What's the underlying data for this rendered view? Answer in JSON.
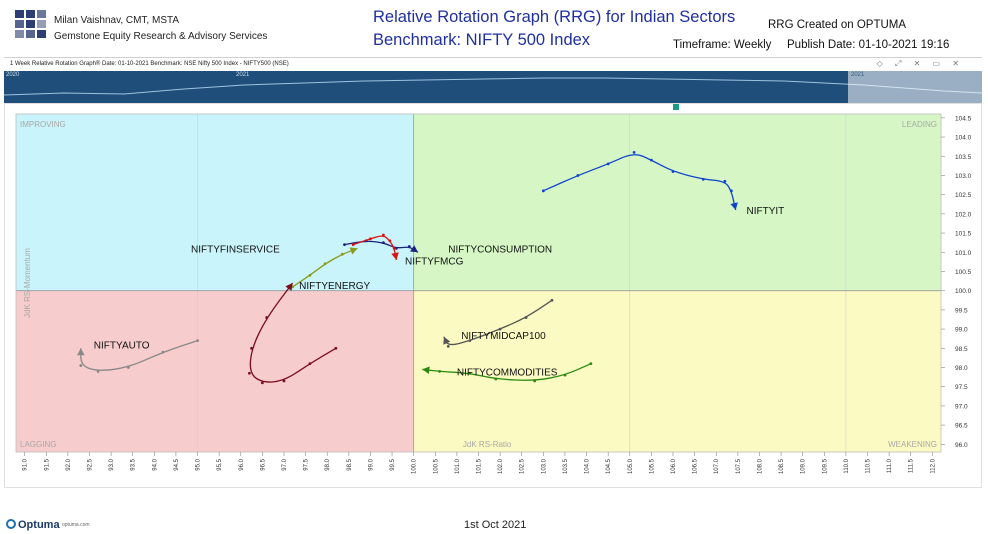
{
  "header": {
    "author": "Milan Vaishnav, CMT, MSTA",
    "firm": "Gemstone Equity Research & Advisory Services",
    "title_line1": "Relative Rotation Graph (RRG) for Indian Sectors",
    "title_line2": "Benchmark: NIFTY 500 Index",
    "created": "RRG Created on OPTUMA",
    "timeframe": "Timeframe: Weekly",
    "publish": "Publish Date: 01-10-2021 19:16"
  },
  "subbar": {
    "text": "1 Week Relative Rotation Graph®   Date: 01-10-2021   Benchmark: NSE Nifty 500 Index - NIFTY500 (NSE)",
    "icons": "◇ ⤢ ✕ ▭ ✕"
  },
  "overview": {
    "year_left": "2020",
    "year_mid": "2021",
    "year_right": "2021"
  },
  "footer": {
    "brand": "Optuma",
    "url": "optuma.com",
    "date": "1st Oct 2021"
  },
  "colors": {
    "improving": "#c9f4fb",
    "leading": "#d6f7c5",
    "lagging": "#f7cccc",
    "weakening": "#fafac2",
    "title": "#1f2f9f",
    "overview": "#1f4e7a"
  },
  "chart_data": {
    "type": "scatter",
    "xlabel": "JdK RS-Ratio",
    "ylabel": "JdK RS-Momentum",
    "xlim": [
      90.8,
      112.2
    ],
    "ylim": [
      95.8,
      104.6
    ],
    "center": [
      100,
      100
    ],
    "x_ticks": [
      91.0,
      91.5,
      92.0,
      92.5,
      93.0,
      93.5,
      94.0,
      94.5,
      95.0,
      95.5,
      96.0,
      96.5,
      97.0,
      97.5,
      98.0,
      98.5,
      99.0,
      99.5,
      100.0,
      100.5,
      101.0,
      101.5,
      102.0,
      102.5,
      103.0,
      103.5,
      104.0,
      104.5,
      105.0,
      105.5,
      106.0,
      106.5,
      107.0,
      107.5,
      108.0,
      108.5,
      109.0,
      109.5,
      110.0,
      110.5,
      111.0,
      111.5,
      112.0
    ],
    "y_ticks": [
      96.0,
      96.5,
      97.0,
      97.5,
      98.0,
      98.5,
      99.0,
      99.5,
      100.0,
      100.5,
      101.0,
      101.5,
      102.0,
      102.5,
      103.0,
      103.5,
      104.0,
      104.5
    ],
    "quadrants": [
      "IMPROVING",
      "LEADING",
      "LAGGING",
      "WEAKENING"
    ],
    "series": [
      {
        "name": "NIFTYIT",
        "color": "#1144cc",
        "points": [
          [
            103,
            102.6
          ],
          [
            103.8,
            103
          ],
          [
            104.5,
            103.3
          ],
          [
            105.1,
            103.6
          ],
          [
            105.5,
            103.4
          ],
          [
            106,
            103.1
          ],
          [
            106.7,
            102.9
          ],
          [
            107.2,
            102.85
          ],
          [
            107.35,
            102.6
          ],
          [
            107.45,
            102.1
          ]
        ]
      },
      {
        "name": "NIFTYCONSUMPTION",
        "color": "#1a237e",
        "points": [
          [
            98.4,
            101.2
          ],
          [
            98.9,
            101.3
          ],
          [
            99.3,
            101.25
          ],
          [
            99.6,
            101.1
          ],
          [
            99.9,
            101.15
          ],
          [
            100.1,
            101.0
          ]
        ]
      },
      {
        "name": "NIFTYFMCG",
        "color": "#dd1111",
        "points": [
          [
            98.6,
            101.2
          ],
          [
            99,
            101.35
          ],
          [
            99.3,
            101.45
          ],
          [
            99.45,
            101.3
          ],
          [
            99.55,
            101.1
          ],
          [
            99.6,
            100.8
          ]
        ]
      },
      {
        "name": "NIFTYFINSERVICE",
        "color": "#8a9a1e",
        "points": [
          [
            97.2,
            100.1
          ],
          [
            97.6,
            100.4
          ],
          [
            97.95,
            100.7
          ],
          [
            98.35,
            100.95
          ],
          [
            98.7,
            101.1
          ]
        ]
      },
      {
        "name": "NIFTYENERGY",
        "color": "#7a0d1f",
        "points": [
          [
            98.2,
            98.5
          ],
          [
            97.6,
            98.1
          ],
          [
            97,
            97.65
          ],
          [
            96.5,
            97.6
          ],
          [
            96.2,
            97.85
          ],
          [
            96.25,
            98.5
          ],
          [
            96.6,
            99.3
          ],
          [
            97.2,
            100.2
          ]
        ]
      },
      {
        "name": "NIFTYAUTO",
        "color": "#888888",
        "points": [
          [
            95,
            98.7
          ],
          [
            94.2,
            98.4
          ],
          [
            93.4,
            98.0
          ],
          [
            92.7,
            97.9
          ],
          [
            92.3,
            98.05
          ],
          [
            92.3,
            98.5
          ]
        ]
      },
      {
        "name": "NIFTYMIDCAP100",
        "color": "#555555",
        "points": [
          [
            103.2,
            99.75
          ],
          [
            102.6,
            99.3
          ],
          [
            102,
            99.0
          ],
          [
            101.3,
            98.7
          ],
          [
            100.8,
            98.55
          ],
          [
            100.7,
            98.8
          ]
        ]
      },
      {
        "name": "NIFTYCOMMODITIES",
        "color": "#2b8a0f",
        "points": [
          [
            104.1,
            98.1
          ],
          [
            103.5,
            97.8
          ],
          [
            102.8,
            97.65
          ],
          [
            101.9,
            97.7
          ],
          [
            101.3,
            97.85
          ],
          [
            100.6,
            97.9
          ],
          [
            100.2,
            97.95
          ]
        ]
      }
    ]
  }
}
